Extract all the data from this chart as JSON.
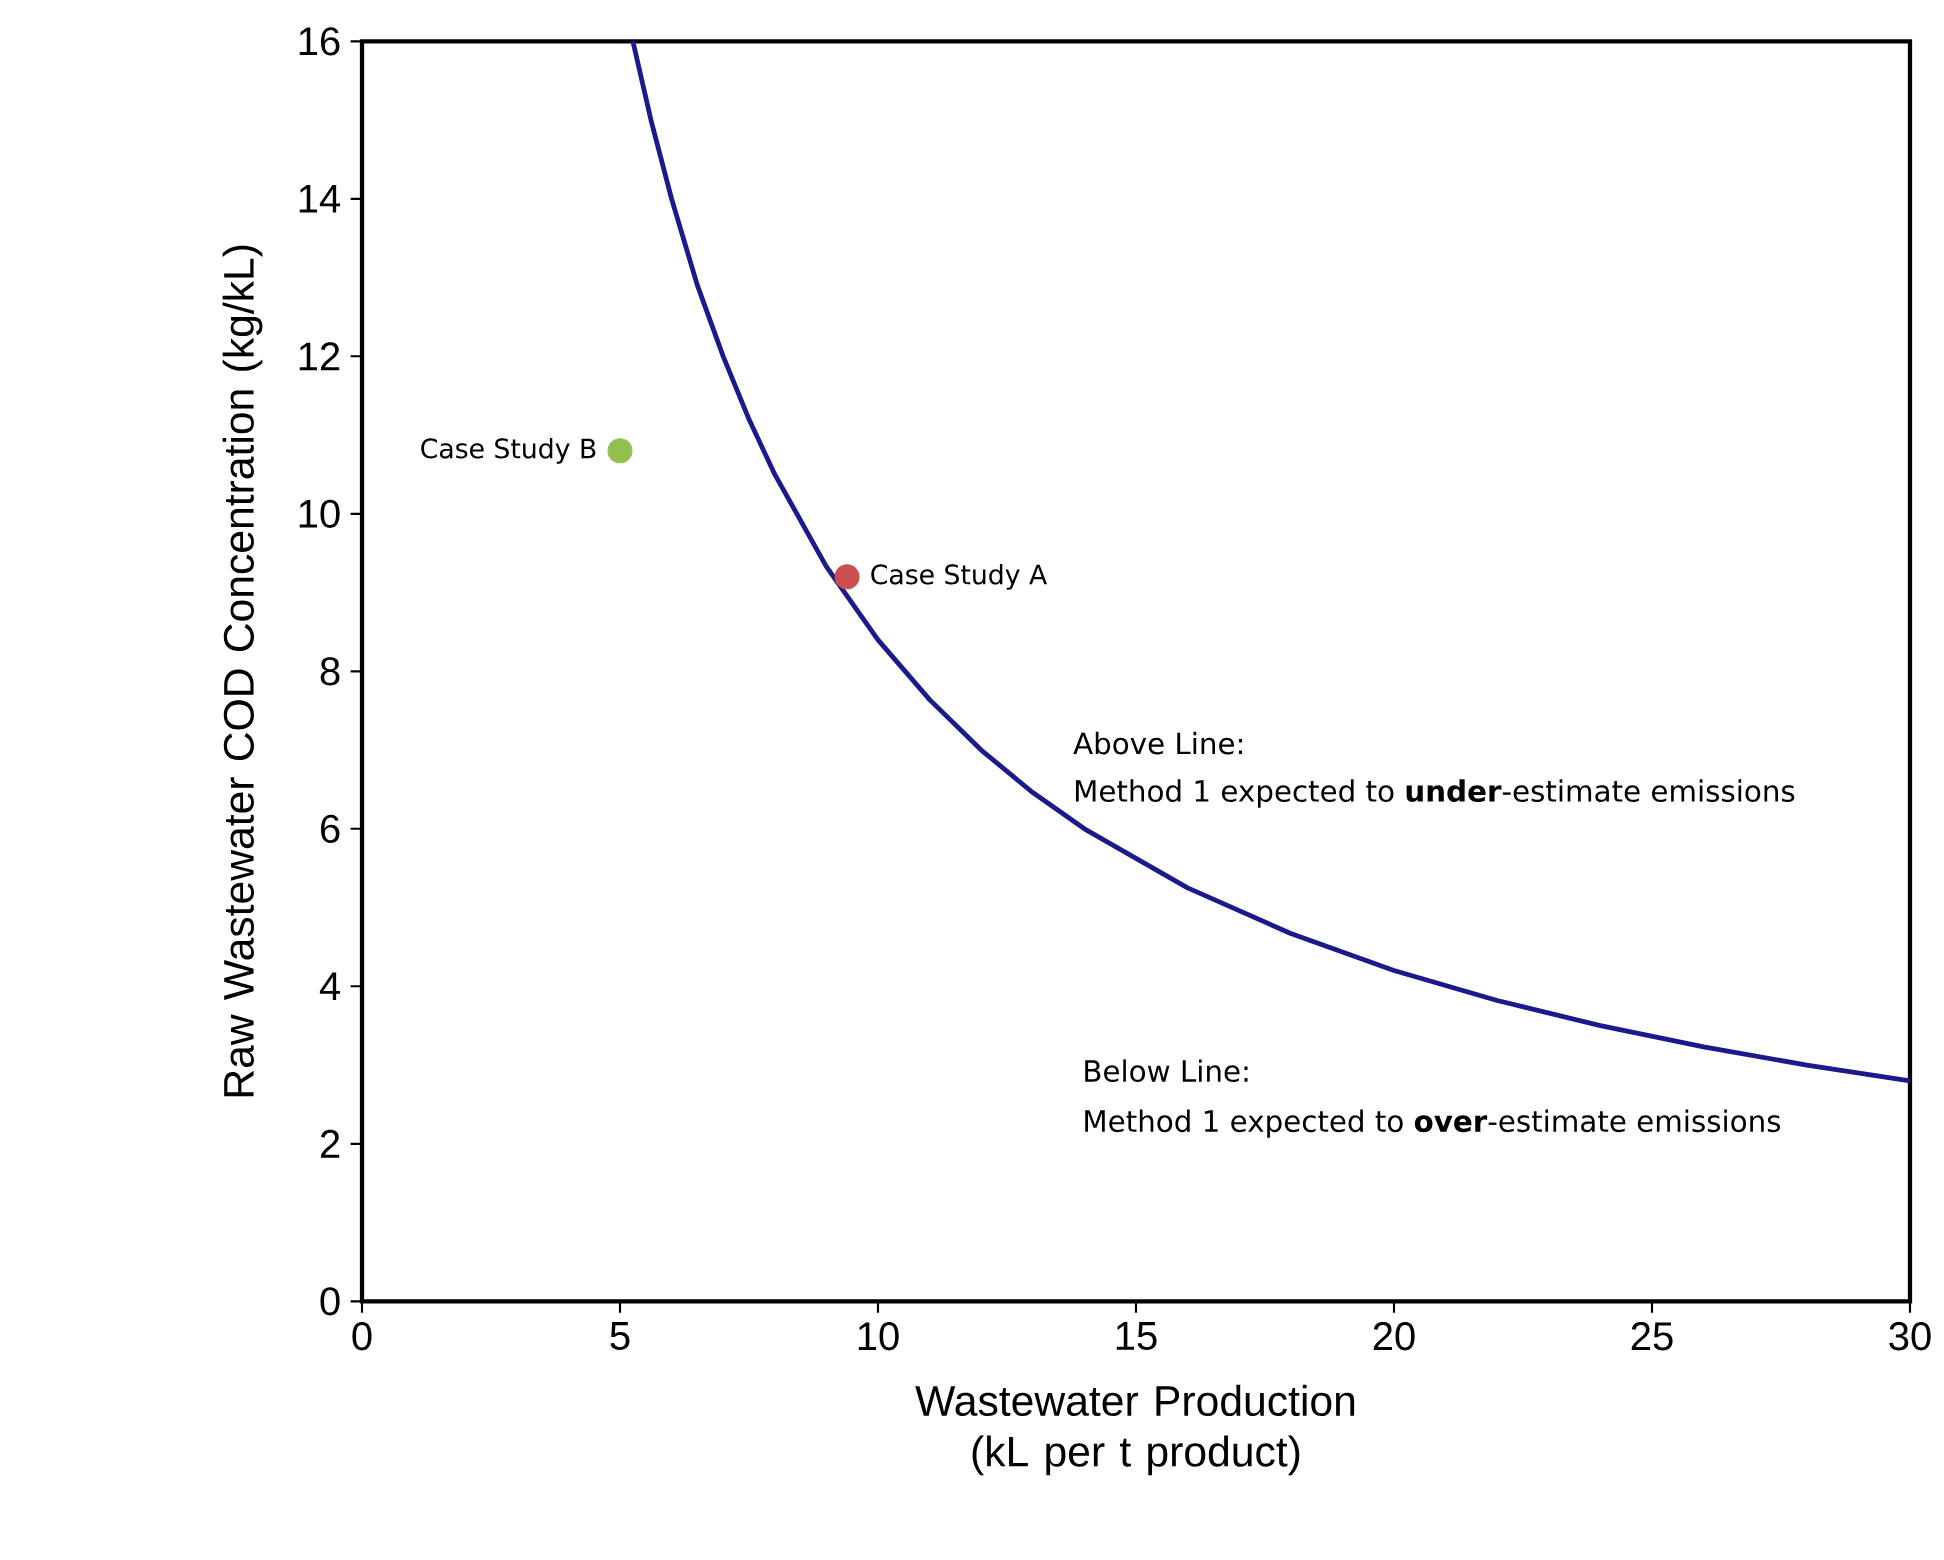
{
  "chart_data": {
    "type": "line",
    "xlabel": "Wastewater Production (kL per t product)",
    "ylabel": "Raw Wastewater COD Concentration (kg/kL)",
    "xlim": [
      0,
      30
    ],
    "ylim": [
      0,
      16
    ],
    "xticks": [
      0,
      5,
      10,
      15,
      20,
      25,
      30
    ],
    "yticks": [
      0,
      2,
      4,
      6,
      8,
      10,
      12,
      14,
      16
    ],
    "grid": false,
    "legend": false,
    "series": [
      {
        "color": "#1a1a8c",
        "marker": "none",
        "x": [
          5.25,
          5.6,
          6,
          6.5,
          7,
          7.5,
          8,
          9,
          10,
          11,
          12,
          13,
          14,
          16,
          18,
          20,
          22,
          24,
          26,
          28,
          30
        ],
        "values": [
          16,
          15,
          14,
          12.9,
          12,
          11.2,
          10.5,
          9.33,
          8.4,
          7.64,
          7,
          6.46,
          6,
          5.25,
          4.67,
          4.2,
          3.82,
          3.5,
          3.23,
          3,
          2.8
        ]
      },
      {
        "type": "scatter",
        "name": "Case Study A",
        "color": "#cc5050",
        "marker": "circle",
        "x": [
          9.4
        ],
        "values": [
          9.2
        ]
      },
      {
        "type": "scatter",
        "name": "Case Study B",
        "color": "#92c050",
        "marker": "circle",
        "x": [
          5.0
        ],
        "values": [
          10.8
        ]
      }
    ],
    "annotations": [
      "Above Line:",
      "Method 1 expected to **under**-estimate emissions",
      "Below Line:",
      "Method 1 expected to **over**-estimate emissions"
    ]
  }
}
